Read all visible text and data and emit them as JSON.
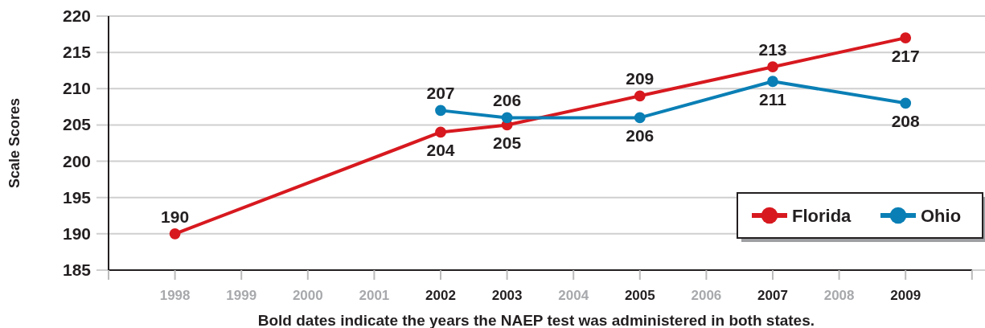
{
  "chart_data": {
    "type": "line",
    "ylabel": "Scale Scores",
    "xlabel": "Bold dates indicate the years the NAEP test was administered in both states.",
    "categories": [
      "1998",
      "1999",
      "2000",
      "2001",
      "2002",
      "2003",
      "2004",
      "2005",
      "2006",
      "2007",
      "2008",
      "2009"
    ],
    "series": [
      {
        "name": "Florida",
        "color": "#d7191f",
        "values": [
          190,
          null,
          null,
          null,
          204,
          205,
          null,
          209,
          null,
          213,
          null,
          217
        ]
      },
      {
        "name": "Ohio",
        "color": "#0a7fb5",
        "values": [
          null,
          null,
          null,
          null,
          207,
          206,
          null,
          206,
          null,
          211,
          null,
          208
        ]
      }
    ],
    "ylim": [
      185,
      220
    ],
    "yticks": [
      185,
      190,
      195,
      200,
      205,
      210,
      215,
      220
    ],
    "grid": "y",
    "legend": "bottom right",
    "marker": "circle",
    "line_style": "solid",
    "data_labels": true
  }
}
